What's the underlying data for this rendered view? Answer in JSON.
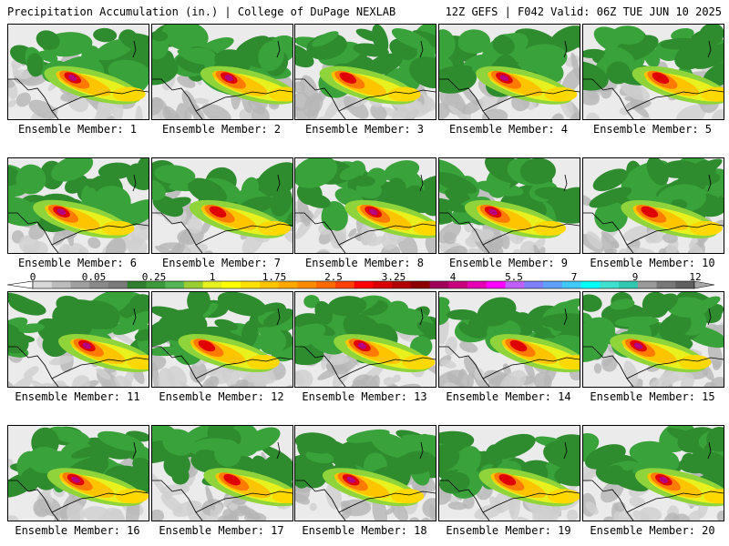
{
  "header": {
    "title": "Precipitation Accumulation (in.) | College of DuPage NEXLAB",
    "run_info": "12Z GEFS | F042 Valid: 06Z TUE JUN 10 2025"
  },
  "colorbar": {
    "labels": [
      "0",
      "0.05",
      "0.25",
      "1",
      "1.75",
      "2.5",
      "3.25",
      "4",
      "5.5",
      "7",
      "9",
      "12"
    ],
    "colors": [
      "#d8d8d8",
      "#bcbcbc",
      "#a0a0a0",
      "#8a8a8a",
      "#7a7a7a",
      "#2f7f2f",
      "#3c9a3c",
      "#55b455",
      "#9acd32",
      "#e6f01e",
      "#ffff00",
      "#ffe000",
      "#ffc400",
      "#ffa800",
      "#ff8c00",
      "#ff6a00",
      "#ff4000",
      "#ff0000",
      "#d80000",
      "#b00000",
      "#8b0000",
      "#a0005a",
      "#c8007d",
      "#e600b4",
      "#ff00ff",
      "#c060ff",
      "#8080ff",
      "#60a0ff",
      "#40c8ff",
      "#00ffff",
      "#40e0d0",
      "#30c8b0",
      "#9a9a9a",
      "#787878",
      "#606060"
    ]
  },
  "members": [
    {
      "caption": "Ensemble Member: 1"
    },
    {
      "caption": "Ensemble Member: 2"
    },
    {
      "caption": "Ensemble Member: 3"
    },
    {
      "caption": "Ensemble Member: 4"
    },
    {
      "caption": "Ensemble Member: 5"
    },
    {
      "caption": "Ensemble Member: 6"
    },
    {
      "caption": "Ensemble Member: 7"
    },
    {
      "caption": "Ensemble Member: 8"
    },
    {
      "caption": "Ensemble Member: 9"
    },
    {
      "caption": "Ensemble Member: 10"
    },
    {
      "caption": "Ensemble Member: 11"
    },
    {
      "caption": "Ensemble Member: 12"
    },
    {
      "caption": "Ensemble Member: 13"
    },
    {
      "caption": "Ensemble Member: 14"
    },
    {
      "caption": "Ensemble Member: 15"
    },
    {
      "caption": "Ensemble Member: 16"
    },
    {
      "caption": "Ensemble Member: 17"
    },
    {
      "caption": "Ensemble Member: 18"
    },
    {
      "caption": "Ensemble Member: 19"
    },
    {
      "caption": "Ensemble Member: 20"
    }
  ]
}
